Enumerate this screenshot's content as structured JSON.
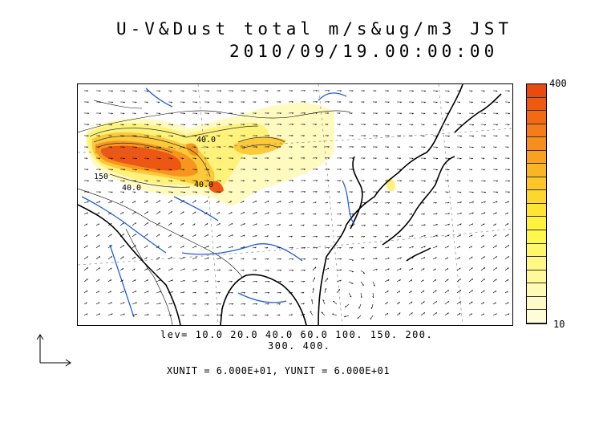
{
  "title_line1": "U-V&Dust total m/s&ug/m3 JST",
  "title_line2": "2010/09/19.00:00:00",
  "levels_line1": "lev= 10.0 20.0 40.0 60.0 100. 150. 200.",
  "levels_line2": "300. 400.",
  "units_text": "XUNIT = 6.000E+01, YUNIT = 6.000E+01",
  "colorbar": {
    "max_label": "400",
    "min_label": "10",
    "colors": [
      "#e84a10",
      "#ef5a12",
      "#f26a14",
      "#f57c18",
      "#f88f1c",
      "#faa21e",
      "#fcb522",
      "#fdc626",
      "#fed72c",
      "#ffe532",
      "#fff23a",
      "#fff64e",
      "#fff76a",
      "#fff884",
      "#fff99c",
      "#fffab4",
      "#fffbc8",
      "#fffcd8"
    ]
  },
  "contour_labels": [
    "40.0",
    "40.0",
    "150",
    "40.0"
  ],
  "map_features": {
    "land_color": "#ffffff",
    "coast_color": "#000000",
    "river_color": "#1f5fd6",
    "wind_vectors": "arrows-icon",
    "dust_plume": "dust-concentration-shading"
  }
}
